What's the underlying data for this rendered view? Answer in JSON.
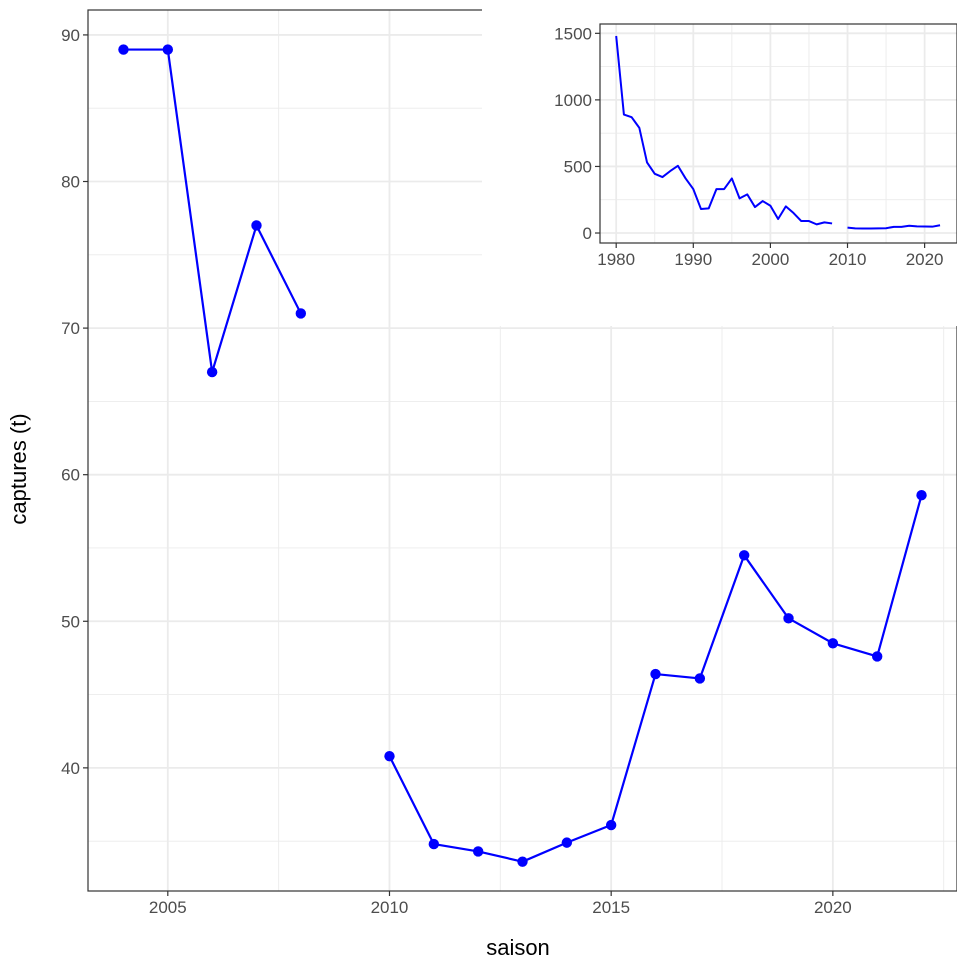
{
  "chart_data": [
    {
      "type": "line",
      "xlabel": "saison",
      "ylabel": "captures (t)",
      "xlim": [
        2003.2,
        2022.8
      ],
      "ylim": [
        31.6,
        91.7
      ],
      "x_ticks": [
        2005,
        2010,
        2015,
        2020
      ],
      "y_ticks": [
        40,
        50,
        60,
        70,
        80,
        90
      ],
      "grid": true,
      "line_color": "#0000ff",
      "markers": true,
      "segments": [
        {
          "x": [
            2004,
            2005,
            2006,
            2007,
            2008
          ],
          "y": [
            89,
            89,
            67,
            77,
            71
          ]
        },
        {
          "x": [
            2010,
            2011,
            2012,
            2013,
            2014,
            2015,
            2016,
            2017,
            2018,
            2019,
            2020,
            2021,
            2022
          ],
          "y": [
            40.8,
            34.8,
            34.3,
            33.6,
            34.9,
            36.1,
            46.4,
            46.1,
            54.5,
            50.2,
            48.5,
            47.6,
            58.6
          ]
        }
      ]
    },
    {
      "type": "line",
      "position": "inset top-right",
      "xlim": [
        1977.9,
        2024.2
      ],
      "ylim": [
        -75,
        1570
      ],
      "x_ticks": [
        1980,
        1990,
        2000,
        2010,
        2020
      ],
      "y_ticks": [
        0,
        500,
        1000,
        1500
      ],
      "grid": true,
      "line_color": "#0000ff",
      "markers": false,
      "segments": [
        {
          "x": [
            1980,
            1981,
            1982,
            1983,
            1984,
            1985,
            1986,
            1987,
            1988,
            1989,
            1990,
            1991,
            1992,
            1993,
            1994,
            1995,
            1996,
            1997,
            1998,
            1999,
            2000,
            2001,
            2002,
            2003,
            2004,
            2005,
            2006,
            2007,
            2008
          ],
          "y": [
            1480,
            890,
            870,
            790,
            530,
            445,
            420,
            465,
            505,
            410,
            330,
            180,
            185,
            330,
            330,
            410,
            260,
            290,
            195,
            240,
            205,
            105,
            200,
            150,
            90,
            90,
            65,
            80,
            72
          ]
        },
        {
          "x": [
            2010,
            2011,
            2012,
            2013,
            2014,
            2015,
            2016,
            2017,
            2018,
            2019,
            2020,
            2021,
            2022
          ],
          "y": [
            40.8,
            34.8,
            34.3,
            33.6,
            34.9,
            36.1,
            46.4,
            46.1,
            54.5,
            50.2,
            48.5,
            47.6,
            58.6
          ]
        }
      ]
    }
  ]
}
